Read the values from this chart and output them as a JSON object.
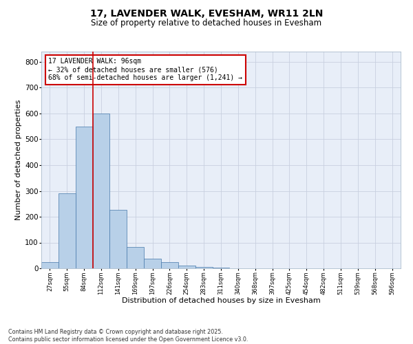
{
  "title": "17, LAVENDER WALK, EVESHAM, WR11 2LN",
  "subtitle": "Size of property relative to detached houses in Evesham",
  "xlabel": "Distribution of detached houses by size in Evesham",
  "ylabel": "Number of detached properties",
  "bar_labels": [
    "27sqm",
    "55sqm",
    "84sqm",
    "112sqm",
    "141sqm",
    "169sqm",
    "197sqm",
    "226sqm",
    "254sqm",
    "283sqm",
    "311sqm",
    "340sqm",
    "368sqm",
    "397sqm",
    "425sqm",
    "454sqm",
    "482sqm",
    "511sqm",
    "539sqm",
    "568sqm",
    "596sqm"
  ],
  "bar_values": [
    25,
    290,
    548,
    600,
    228,
    83,
    37,
    25,
    12,
    6,
    4,
    0,
    0,
    0,
    0,
    0,
    0,
    0,
    0,
    0,
    0
  ],
  "bar_color": "#b8d0e8",
  "bar_edge_color": "#4477aa",
  "vline_color": "#cc0000",
  "annotation_text": "17 LAVENDER WALK: 96sqm\n← 32% of detached houses are smaller (576)\n68% of semi-detached houses are larger (1,241) →",
  "annotation_box_color": "#cc0000",
  "ylim": [
    0,
    840
  ],
  "yticks": [
    0,
    100,
    200,
    300,
    400,
    500,
    600,
    700,
    800
  ],
  "background_color": "#e8eef8",
  "grid_color": "#c8d0e0",
  "footer_line1": "Contains HM Land Registry data © Crown copyright and database right 2025.",
  "footer_line2": "Contains public sector information licensed under the Open Government Licence v3.0."
}
